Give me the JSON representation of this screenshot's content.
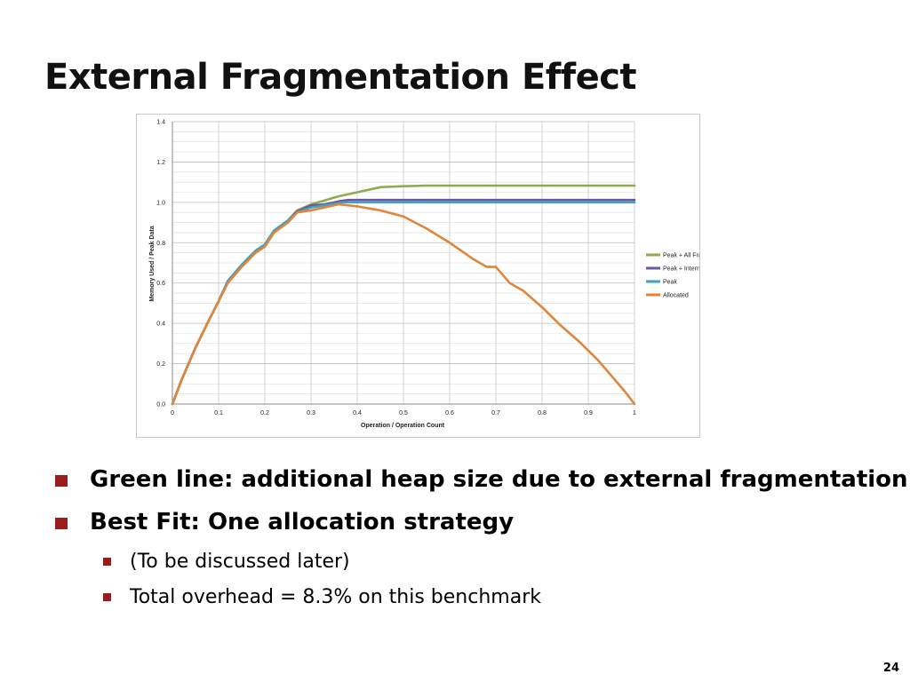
{
  "slide": {
    "title": "External Fragmentation Effect",
    "page_number": "24"
  },
  "bullets": [
    {
      "level": 1,
      "text": "Green line: additional heap size due to external fragmentation"
    },
    {
      "level": 1,
      "text": "Best Fit: One allocation strategy"
    },
    {
      "level": 2,
      "text": "(To be discussed later)"
    },
    {
      "level": 2,
      "text": "Total overhead = 8.3% on this benchmark"
    }
  ],
  "colors": {
    "bullet_marker": "#9b1c1c",
    "grid_line": "#c9c9c9",
    "axis_text": "#222222"
  },
  "chart_data": {
    "type": "line",
    "title": "",
    "xlabel": "Operation / Operation Count",
    "ylabel": "Memory Used / Peak Data",
    "xlim": [
      0,
      1
    ],
    "ylim": [
      0,
      1.4
    ],
    "grid": true,
    "legend_position": "right",
    "x_ticks": [
      "0",
      "0.1",
      "0.2",
      "0.3",
      "0.4",
      "0.5",
      "0.6",
      "0.7",
      "0.8",
      "0.9",
      "1"
    ],
    "y_ticks": [
      "0.0",
      "0.2",
      "0.4",
      "0.6",
      "0.8",
      "1.0",
      "1.2",
      "1.4"
    ],
    "series": [
      {
        "name": "Peak + All Frag (Best Fit)",
        "color": "#8faa4f",
        "points": [
          [
            0,
            0
          ],
          [
            0.02,
            0.12
          ],
          [
            0.05,
            0.28
          ],
          [
            0.08,
            0.42
          ],
          [
            0.1,
            0.51
          ],
          [
            0.12,
            0.61
          ],
          [
            0.15,
            0.69
          ],
          [
            0.18,
            0.76
          ],
          [
            0.2,
            0.79
          ],
          [
            0.22,
            0.86
          ],
          [
            0.25,
            0.91
          ],
          [
            0.27,
            0.96
          ],
          [
            0.3,
            0.99
          ],
          [
            0.33,
            1.01
          ],
          [
            0.36,
            1.03
          ],
          [
            0.4,
            1.05
          ],
          [
            0.45,
            1.075
          ],
          [
            0.5,
            1.08
          ],
          [
            0.55,
            1.083
          ],
          [
            1,
            1.083
          ]
        ]
      },
      {
        "name": "Peak + Internal Frag",
        "color": "#6e55a0",
        "points": [
          [
            0,
            0
          ],
          [
            0.02,
            0.12
          ],
          [
            0.05,
            0.28
          ],
          [
            0.08,
            0.42
          ],
          [
            0.1,
            0.51
          ],
          [
            0.12,
            0.61
          ],
          [
            0.15,
            0.69
          ],
          [
            0.18,
            0.76
          ],
          [
            0.2,
            0.79
          ],
          [
            0.22,
            0.86
          ],
          [
            0.25,
            0.91
          ],
          [
            0.27,
            0.955
          ],
          [
            0.3,
            0.985
          ],
          [
            0.33,
            0.99
          ],
          [
            0.36,
            1.005
          ],
          [
            0.38,
            1.012
          ],
          [
            1,
            1.012
          ]
        ]
      },
      {
        "name": "Peak",
        "color": "#42a2bd",
        "points": [
          [
            0,
            0
          ],
          [
            0.02,
            0.12
          ],
          [
            0.05,
            0.28
          ],
          [
            0.08,
            0.42
          ],
          [
            0.1,
            0.51
          ],
          [
            0.12,
            0.61
          ],
          [
            0.15,
            0.69
          ],
          [
            0.18,
            0.76
          ],
          [
            0.2,
            0.79
          ],
          [
            0.22,
            0.86
          ],
          [
            0.25,
            0.91
          ],
          [
            0.27,
            0.95
          ],
          [
            0.3,
            0.975
          ],
          [
            0.33,
            0.985
          ],
          [
            0.37,
            1.0
          ],
          [
            1,
            1.0
          ]
        ]
      },
      {
        "name": "Allocated",
        "color": "#e0853a",
        "points": [
          [
            0,
            0
          ],
          [
            0.02,
            0.12
          ],
          [
            0.05,
            0.28
          ],
          [
            0.08,
            0.42
          ],
          [
            0.1,
            0.51
          ],
          [
            0.12,
            0.6
          ],
          [
            0.15,
            0.68
          ],
          [
            0.18,
            0.75
          ],
          [
            0.2,
            0.78
          ],
          [
            0.22,
            0.85
          ],
          [
            0.25,
            0.9
          ],
          [
            0.27,
            0.95
          ],
          [
            0.3,
            0.96
          ],
          [
            0.33,
            0.975
          ],
          [
            0.36,
            0.99
          ],
          [
            0.38,
            0.985
          ],
          [
            0.4,
            0.98
          ],
          [
            0.45,
            0.96
          ],
          [
            0.5,
            0.93
          ],
          [
            0.55,
            0.87
          ],
          [
            0.6,
            0.8
          ],
          [
            0.65,
            0.72
          ],
          [
            0.68,
            0.68
          ],
          [
            0.7,
            0.68
          ],
          [
            0.73,
            0.6
          ],
          [
            0.76,
            0.56
          ],
          [
            0.8,
            0.48
          ],
          [
            0.84,
            0.39
          ],
          [
            0.88,
            0.31
          ],
          [
            0.92,
            0.22
          ],
          [
            0.95,
            0.14
          ],
          [
            0.98,
            0.06
          ],
          [
            1,
            0.0
          ]
        ]
      }
    ]
  }
}
